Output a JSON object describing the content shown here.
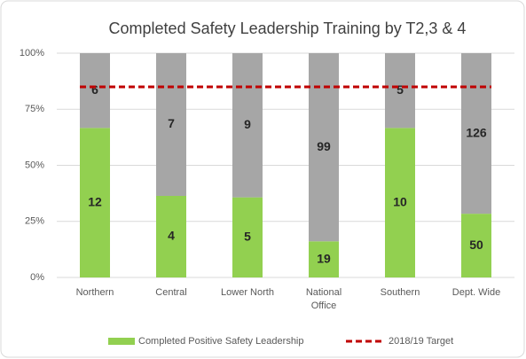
{
  "chart_data": {
    "type": "bar",
    "stacking": "percent",
    "title": "Completed Safety Leadership Training by T2,3 & 4",
    "categories": [
      "Northern",
      "Central",
      "Lower North",
      "National Office",
      "Southern",
      "Dept. Wide"
    ],
    "series": [
      {
        "name": "Completed Positive Safety Leadership",
        "color": "#92d050",
        "values": [
          12,
          4,
          5,
          19,
          10,
          50
        ]
      },
      {
        "name": null,
        "color": "#a6a6a6",
        "values": [
          6,
          7,
          9,
          99,
          5,
          126
        ]
      }
    ],
    "target": {
      "name": "2018/19 Target",
      "value": 85,
      "color": "#c00000"
    },
    "ylim": [
      0,
      100
    ],
    "yticks": [
      {
        "value": 0,
        "label": "0%"
      },
      {
        "value": 25,
        "label": "25%"
      },
      {
        "value": 50,
        "label": "50%"
      },
      {
        "value": 75,
        "label": "75%"
      },
      {
        "value": 100,
        "label": "100%"
      }
    ],
    "grid": true,
    "legend": "bottom"
  }
}
